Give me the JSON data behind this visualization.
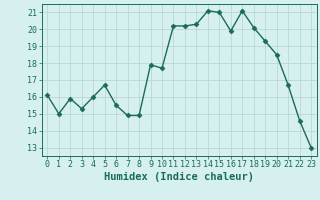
{
  "x": [
    0,
    1,
    2,
    3,
    4,
    5,
    6,
    7,
    8,
    9,
    10,
    11,
    12,
    13,
    14,
    15,
    16,
    17,
    18,
    19,
    20,
    21,
    22,
    23
  ],
  "y": [
    16.1,
    15.0,
    15.9,
    15.3,
    16.0,
    16.7,
    15.5,
    14.9,
    14.9,
    17.9,
    17.7,
    20.2,
    20.2,
    20.3,
    21.1,
    21.0,
    19.9,
    21.1,
    20.1,
    19.3,
    18.5,
    16.7,
    14.6,
    13.0
  ],
  "line_color": "#1a6b5a",
  "marker": "D",
  "markersize": 2.5,
  "linewidth": 1.0,
  "bg_color": "#d6f0ef",
  "grid_color": "#b8d8d6",
  "xlabel": "Humidex (Indice chaleur)",
  "xlim": [
    -0.5,
    23.5
  ],
  "ylim": [
    12.5,
    21.5
  ],
  "yticks": [
    13,
    14,
    15,
    16,
    17,
    18,
    19,
    20,
    21
  ],
  "xticks": [
    0,
    1,
    2,
    3,
    4,
    5,
    6,
    7,
    8,
    9,
    10,
    11,
    12,
    13,
    14,
    15,
    16,
    17,
    18,
    19,
    20,
    21,
    22,
    23
  ],
  "tick_color": "#1a6b5a",
  "tick_fontsize": 6,
  "xlabel_fontsize": 7.5,
  "xlabel_fontweight": "bold"
}
